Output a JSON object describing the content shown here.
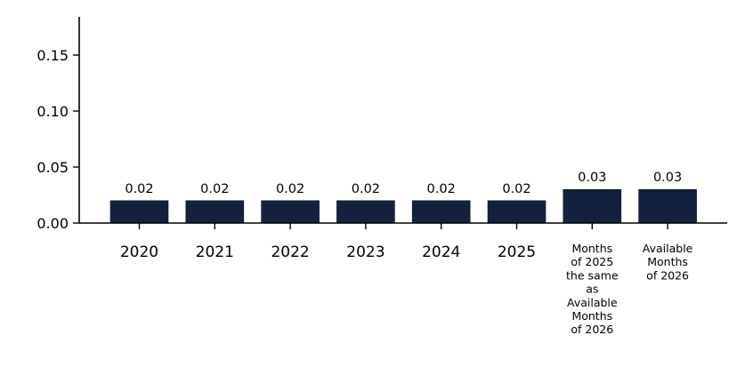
{
  "chart_data": {
    "type": "bar",
    "categories": [
      "2020",
      "2021",
      "2022",
      "2023",
      "2024",
      "2025",
      "Months\nof 2025\nthe same\nas\nAvailable\nMonths\nof 2026",
      "Available\nMonths\nof 2026"
    ],
    "values": [
      0.02,
      0.02,
      0.02,
      0.02,
      0.02,
      0.02,
      0.03,
      0.03
    ],
    "data_labels": [
      "0.02",
      "0.02",
      "0.02",
      "0.02",
      "0.02",
      "0.02",
      "0.03",
      "0.03"
    ],
    "yticks": [
      "0.00",
      "0.05",
      "0.10",
      "0.15"
    ],
    "ylim": [
      0,
      0.18
    ],
    "title": "",
    "xlabel": "",
    "ylabel": "",
    "grid": false,
    "bar_color": "#13213f"
  }
}
